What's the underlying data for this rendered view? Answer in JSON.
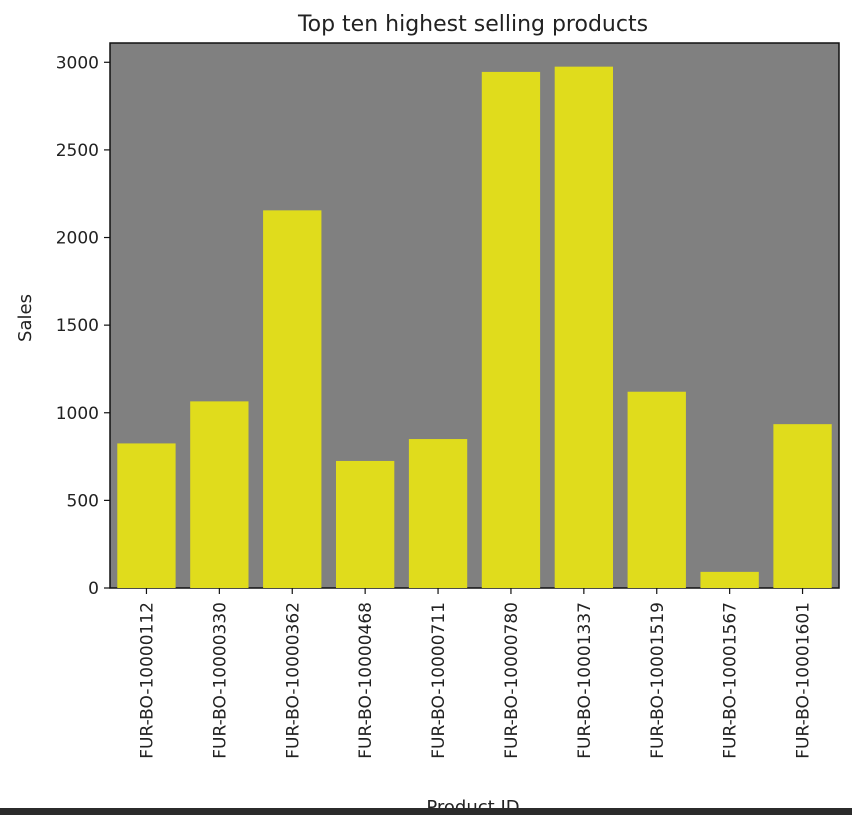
{
  "chart_data": {
    "type": "bar",
    "title": "Top ten highest selling products",
    "xlabel": "Product ID",
    "ylabel": "Sales",
    "categories": [
      "FUR-BO-10000112",
      "FUR-BO-10000330",
      "FUR-BO-10000362",
      "FUR-BO-10000468",
      "FUR-BO-10000711",
      "FUR-BO-10000780",
      "FUR-BO-10001337",
      "FUR-BO-10001519",
      "FUR-BO-10001567",
      "FUR-BO-10001601"
    ],
    "values": [
      825,
      1065,
      2155,
      725,
      850,
      2945,
      2975,
      1120,
      92,
      935
    ],
    "ylim": [
      0,
      3110
    ],
    "yticks": [
      0,
      500,
      1000,
      1500,
      2000,
      2500,
      3000
    ],
    "grid": false,
    "legend": "none",
    "colors": {
      "bar": "#e0dc1c",
      "plot_background": "#808080",
      "axis": "#111111"
    }
  }
}
